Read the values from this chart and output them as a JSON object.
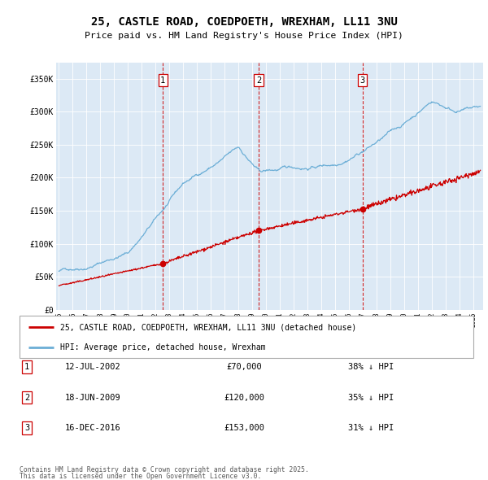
{
  "title": "25, CASTLE ROAD, COEDPOETH, WREXHAM, LL11 3NU",
  "subtitle": "Price paid vs. HM Land Registry's House Price Index (HPI)",
  "plot_bg_color": "#dce9f5",
  "ylabel_ticks": [
    "£0",
    "£50K",
    "£100K",
    "£150K",
    "£200K",
    "£250K",
    "£300K",
    "£350K"
  ],
  "ytick_values": [
    0,
    50000,
    100000,
    150000,
    200000,
    250000,
    300000,
    350000
  ],
  "ylim": [
    0,
    375000
  ],
  "xlim_start": 1994.8,
  "xlim_end": 2025.7,
  "sale_dates": [
    2002.53,
    2009.46,
    2016.96
  ],
  "sale_prices": [
    70000,
    120000,
    153000
  ],
  "sale_labels": [
    "1",
    "2",
    "3"
  ],
  "sale_info": [
    {
      "label": "1",
      "date": "12-JUL-2002",
      "price": "£70,000",
      "hpi": "38% ↓ HPI"
    },
    {
      "label": "2",
      "date": "18-JUN-2009",
      "price": "£120,000",
      "hpi": "35% ↓ HPI"
    },
    {
      "label": "3",
      "date": "16-DEC-2016",
      "price": "£153,000",
      "hpi": "31% ↓ HPI"
    }
  ],
  "legend_line1": "25, CASTLE ROAD, COEDPOETH, WREXHAM, LL11 3NU (detached house)",
  "legend_line2": "HPI: Average price, detached house, Wrexham",
  "footer1": "Contains HM Land Registry data © Crown copyright and database right 2025.",
  "footer2": "This data is licensed under the Open Government Licence v3.0.",
  "hpi_color": "#6baed6",
  "price_color": "#cc0000",
  "vline_color": "#cc0000",
  "box_color": "#cc0000",
  "grid_color": "#ffffff"
}
